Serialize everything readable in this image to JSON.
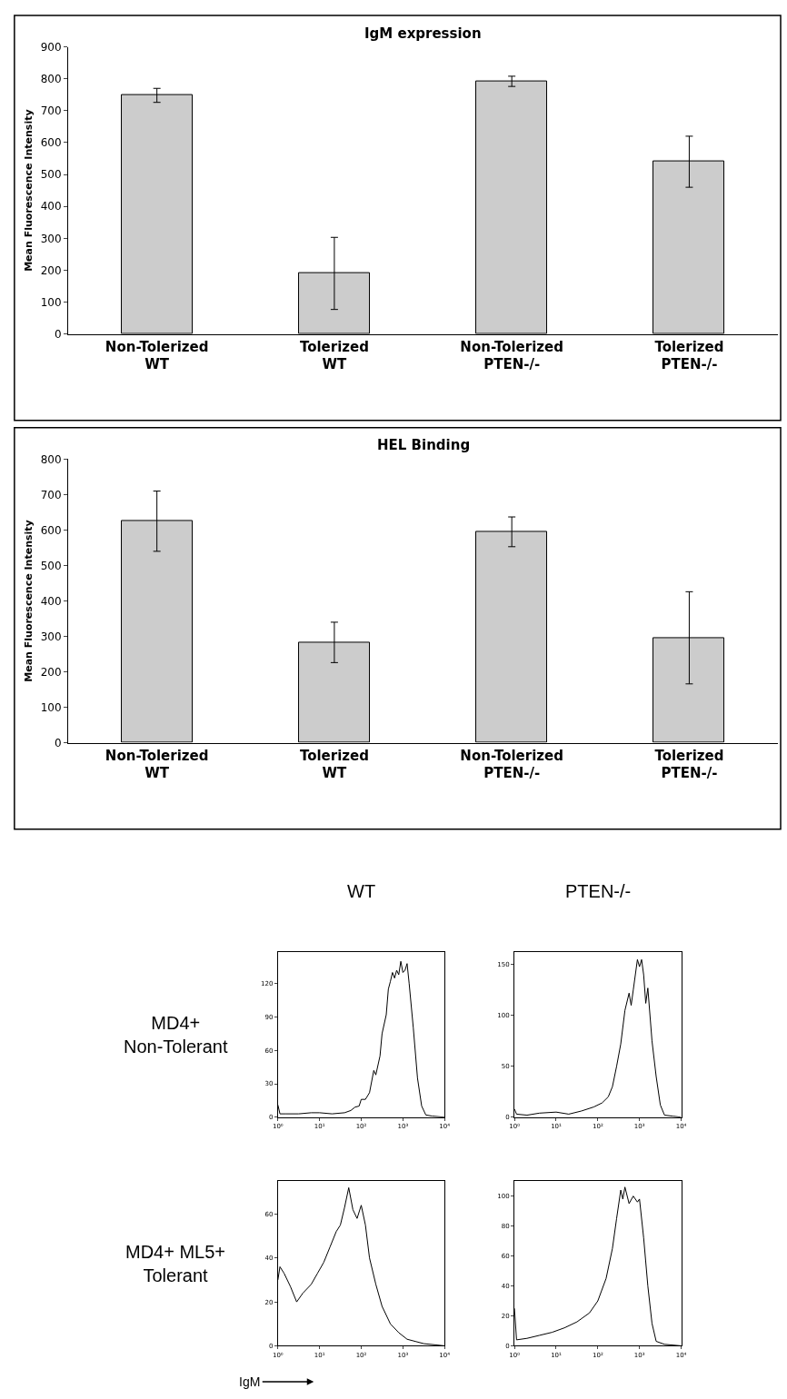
{
  "chart_data": [
    {
      "type": "bar",
      "title": "IgM expression",
      "ylabel": "Mean Fluorescence Intensity",
      "categories": [
        "Non-Tolerized\nWT",
        "Tolerized\nWT",
        "Non-Tolerized\nPTEN-/-",
        "Tolerized\nPTEN-/-"
      ],
      "values": [
        748,
        190,
        792,
        540
      ],
      "errors": [
        22,
        113,
        16,
        80
      ],
      "color": "#cccccc",
      "ylim": [
        0,
        900
      ],
      "yticks": [
        0,
        100,
        200,
        300,
        400,
        500,
        600,
        700,
        800,
        900
      ]
    },
    {
      "type": "bar",
      "title": "HEL Binding",
      "ylabel": "Mean Fluorescence Intensity",
      "categories": [
        "Non-Tolerized\nWT",
        "Tolerized\nWT",
        "Non-Tolerized\nPTEN-/-",
        "Tolerized\nPTEN-/-"
      ],
      "values": [
        625,
        283,
        595,
        296
      ],
      "errors": [
        85,
        57,
        42,
        130
      ],
      "color": "#cccccc",
      "ylim": [
        0,
        800
      ],
      "yticks": [
        0,
        100,
        200,
        300,
        400,
        500,
        600,
        700,
        800
      ]
    },
    {
      "type": "line",
      "title": "WT",
      "annotations": [
        "MD4+\nNon-Tolerant"
      ],
      "log": "x",
      "xlim": [
        1,
        10000
      ],
      "xticks": [
        {
          "value": 1,
          "label": "10⁰"
        },
        {
          "value": 10,
          "label": "10¹"
        },
        {
          "value": 100,
          "label": "10²"
        },
        {
          "value": 1000,
          "label": "10³"
        },
        {
          "value": 10000,
          "label": "10⁴"
        }
      ],
      "ylim": [
        0,
        148
      ],
      "yticks": [
        0,
        30,
        60,
        90,
        120
      ],
      "marker": "none",
      "series": [
        {
          "color": "#000000",
          "x": [
            1,
            1.12,
            1.58,
            3.16,
            6.31,
            10,
            20,
            39.8,
            56.2,
            70.8,
            89.1,
            100,
            126,
            158,
            200,
            224,
            282,
            316,
            398,
            447,
            501,
            562,
            631,
            708,
            794,
            891,
            1000,
            1122,
            1259,
            1413,
            1778,
            2239,
            2818,
            3548,
            5012,
            10000
          ],
          "values": [
            11,
            3,
            3,
            3,
            4,
            4,
            3,
            4,
            6,
            9,
            10,
            16,
            16,
            22,
            42,
            38,
            55,
            75,
            92,
            115,
            122,
            130,
            125,
            132,
            128,
            140,
            130,
            132,
            138,
            120,
            80,
            35,
            10,
            2,
            1,
            0
          ]
        }
      ]
    },
    {
      "type": "line",
      "title": "PTEN-/-",
      "log": "x",
      "xlim": [
        1,
        10000
      ],
      "xticks": [
        {
          "value": 1,
          "label": "10⁰"
        },
        {
          "value": 10,
          "label": "10¹"
        },
        {
          "value": 100,
          "label": "10²"
        },
        {
          "value": 1000,
          "label": "10³"
        },
        {
          "value": 10000,
          "label": "10⁴"
        }
      ],
      "ylim": [
        0,
        162
      ],
      "yticks": [
        0,
        50,
        100,
        150
      ],
      "marker": "none",
      "series": [
        {
          "color": "#000000",
          "x": [
            1,
            1.12,
            2,
            3.98,
            10,
            20,
            39.8,
            79.4,
            126,
            178,
            224,
            282,
            355,
            447,
            562,
            631,
            708,
            891,
            1000,
            1122,
            1259,
            1413,
            1585,
            1995,
            2512,
            3162,
            3981,
            6310,
            10000
          ],
          "values": [
            8,
            3,
            2,
            4,
            5,
            3,
            6,
            10,
            14,
            20,
            30,
            50,
            72,
            105,
            122,
            110,
            125,
            155,
            148,
            155,
            140,
            112,
            127,
            75,
            40,
            12,
            2,
            1,
            0
          ]
        }
      ]
    },
    {
      "type": "line",
      "xlabel": "IgM",
      "annotations": [
        "MD4+ ML5+\nTolerant"
      ],
      "log": "x",
      "xlim": [
        1,
        10000
      ],
      "xticks": [
        {
          "value": 1,
          "label": "10⁰"
        },
        {
          "value": 10,
          "label": "10¹"
        },
        {
          "value": 100,
          "label": "10²"
        },
        {
          "value": 1000,
          "label": "10³"
        },
        {
          "value": 10000,
          "label": "10⁴"
        }
      ],
      "ylim": [
        0,
        75
      ],
      "yticks": [
        0,
        20,
        40,
        60
      ],
      "marker": "none",
      "series": [
        {
          "color": "#000000",
          "x": [
            1,
            1.12,
            1.41,
            2,
            2.82,
            3.98,
            6.31,
            8.91,
            12.6,
            17.8,
            25.1,
            31.6,
            39.8,
            50.1,
            63.1,
            79.4,
            100,
            126,
            158,
            224,
            316,
            501,
            794,
            1259,
            1995,
            3162,
            10000
          ],
          "values": [
            30,
            36,
            33,
            27,
            20,
            24,
            28,
            33,
            38,
            45,
            52,
            55,
            63,
            72,
            62,
            58,
            64,
            55,
            40,
            28,
            18,
            10,
            6,
            3,
            2,
            1,
            0
          ]
        }
      ]
    },
    {
      "type": "line",
      "log": "x",
      "xlim": [
        1,
        10000
      ],
      "xticks": [
        {
          "value": 1,
          "label": "10⁰"
        },
        {
          "value": 10,
          "label": "10¹"
        },
        {
          "value": 100,
          "label": "10²"
        },
        {
          "value": 1000,
          "label": "10³"
        },
        {
          "value": 10000,
          "label": "10⁴"
        }
      ],
      "ylim": [
        0,
        110
      ],
      "yticks": [
        0,
        20,
        40,
        60,
        80,
        100
      ],
      "marker": "none",
      "series": [
        {
          "color": "#000000",
          "x": [
            1,
            1.12,
            2,
            3.98,
            7.94,
            15.8,
            31.6,
            63.1,
            100,
            158,
            224,
            282,
            355,
            398,
            447,
            562,
            708,
            891,
            1000,
            1259,
            1585,
            1995,
            2512,
            3981,
            10000
          ],
          "values": [
            25,
            4,
            5,
            7,
            9,
            12,
            16,
            22,
            30,
            45,
            65,
            85,
            104,
            98,
            106,
            95,
            100,
            96,
            98,
            72,
            40,
            15,
            3,
            1,
            0
          ]
        }
      ]
    }
  ]
}
